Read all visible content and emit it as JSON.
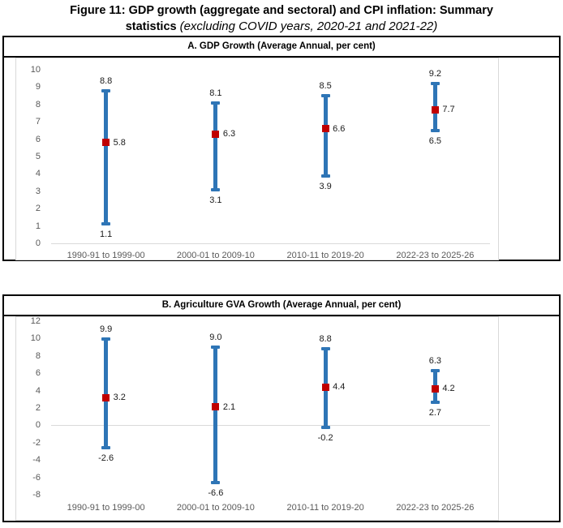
{
  "figure_title": {
    "line1": "Figure 11: GDP growth (aggregate and sectoral) and CPI inflation: Summary",
    "line2_bold": "statistics",
    "line2_italic": "(excluding COVID years, 2020-21 and 2021-22)"
  },
  "colors": {
    "range_line": "#2e75b6",
    "mean_marker": "#c00000",
    "axis_text": "#595959",
    "data_label_text": "#1a1a1a",
    "gridline": "#d9d9d9",
    "panel_border": "#000000",
    "chart_border": "#d9d9d9"
  },
  "chart_data": [
    {
      "type": "range",
      "title": "A. GDP Growth (Average Annual, per cent)",
      "categories": [
        "1990-91 to 1999-00",
        "2000-01 to 2009-10",
        "2010-11 to 2019-20",
        "2022-23 to 2025-26"
      ],
      "series": [
        {
          "name": "max",
          "values": [
            8.8,
            8.1,
            8.5,
            9.2
          ]
        },
        {
          "name": "mean",
          "values": [
            5.8,
            6.3,
            6.6,
            7.7
          ]
        },
        {
          "name": "min",
          "values": [
            1.1,
            3.1,
            3.9,
            6.5
          ]
        }
      ],
      "ylim": [
        0,
        10
      ],
      "ytick_step": 1,
      "grid": false,
      "legend_position": "none",
      "data_label_format": "0.0"
    },
    {
      "type": "range",
      "title": "B. Agriculture GVA Growth (Average Annual, per cent)",
      "categories": [
        "1990-91 to 1999-00",
        "2000-01 to 2009-10",
        "2010-11 to 2019-20",
        "2022-23 to 2025-26"
      ],
      "series": [
        {
          "name": "max",
          "values": [
            9.9,
            9.0,
            8.8,
            6.3
          ]
        },
        {
          "name": "mean",
          "values": [
            3.2,
            2.1,
            4.4,
            4.2
          ]
        },
        {
          "name": "min",
          "values": [
            -2.6,
            -6.6,
            -0.2,
            2.7
          ]
        }
      ],
      "ylim": [
        -8,
        12
      ],
      "ytick_step": 2,
      "grid": false,
      "legend_position": "none",
      "data_label_format": "0.0"
    }
  ]
}
